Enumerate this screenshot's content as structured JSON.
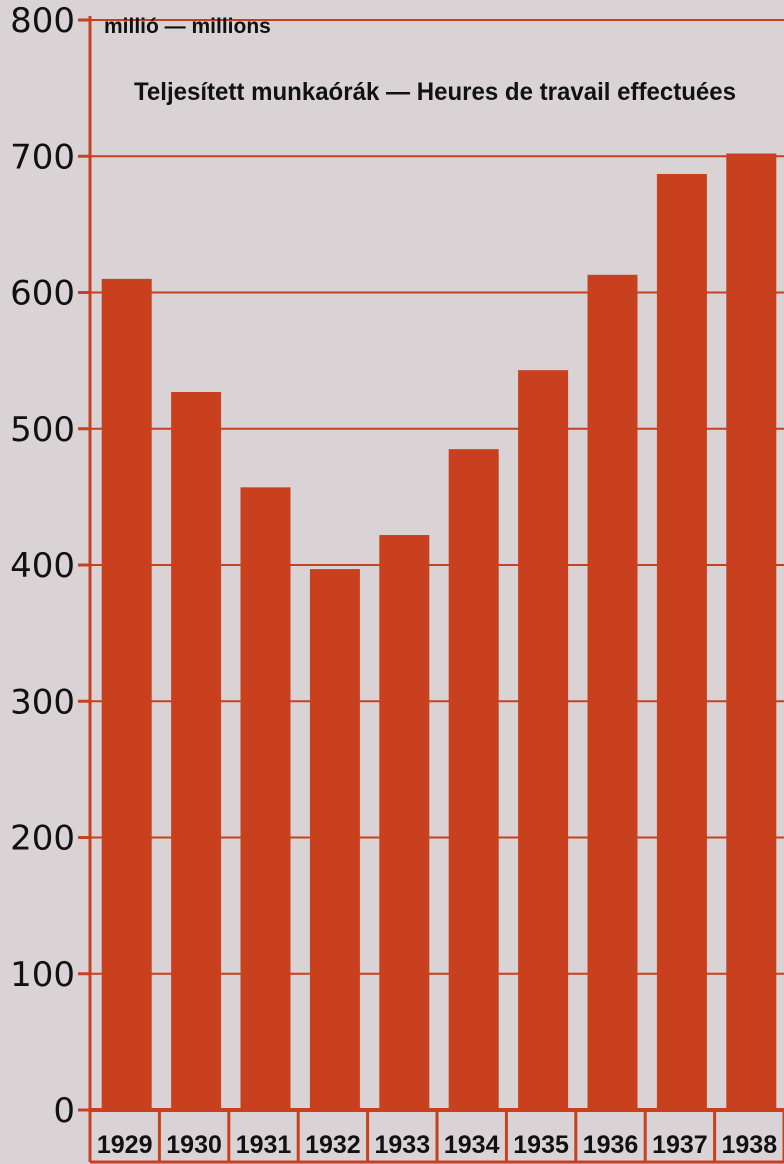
{
  "chart_data": {
    "type": "bar",
    "title": "Teljesített munkaórák — Heures de travail effectuées",
    "unit_label": "millió — millions",
    "xlabel": "",
    "ylabel": "",
    "categories": [
      "1929",
      "1930",
      "1931",
      "1932",
      "1933",
      "1934",
      "1935",
      "1936",
      "1937",
      "1938"
    ],
    "values": [
      610,
      527,
      457,
      397,
      422,
      485,
      543,
      613,
      687,
      702
    ],
    "ylim": [
      0,
      800
    ],
    "yticks": [
      "0",
      "100",
      "200",
      "300",
      "400",
      "500",
      "600",
      "700",
      "800"
    ],
    "grid": true,
    "colors": {
      "bar": "#c8401e",
      "grid": "#c8401e",
      "axis": "#c8401e",
      "background": "#d9d3d6",
      "text": "#111111"
    }
  }
}
